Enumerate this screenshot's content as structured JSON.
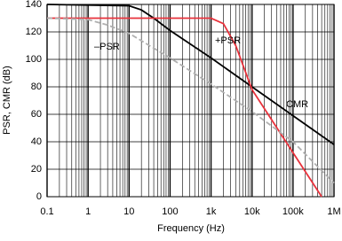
{
  "chart_data": {
    "type": "line",
    "x_label": "Frequency (Hz)",
    "y_label": "PSR, CMR (dB)",
    "log_x": true,
    "grid": true,
    "minor_grid": true,
    "xlim": [
      0.1,
      1000000
    ],
    "xticks": [
      0.1,
      1,
      10,
      100,
      {
        "value": 1000,
        "label": "1k"
      },
      {
        "value": 10000,
        "label": "10k"
      },
      {
        "value": 100000,
        "label": "100k"
      },
      {
        "value": 1000000,
        "label": "1M"
      }
    ],
    "ylim": [
      0,
      140
    ],
    "yticks": [
      0,
      20,
      40,
      60,
      80,
      100,
      120,
      140
    ],
    "series": [
      {
        "name": "CMR",
        "color": "#000000",
        "dash": false,
        "x": [
          0.1,
          10,
          20,
          40,
          100,
          1000,
          10000,
          100000,
          1000000
        ],
        "values": [
          140,
          139,
          136,
          130,
          121,
          101,
          80,
          59,
          38
        ]
      },
      {
        "name": "+PSR",
        "color": "#e8323c",
        "dash": false,
        "x": [
          0.1,
          1000,
          2000,
          4000,
          10000,
          100000,
          500000
        ],
        "values": [
          130,
          130,
          126,
          110,
          78,
          32,
          0
        ]
      },
      {
        "name": "–PSR",
        "color": "#b0b0b0",
        "dash": true,
        "x": [
          0.1,
          1,
          3,
          10,
          100,
          1000,
          10000,
          100000,
          1000000
        ],
        "values": [
          130,
          129,
          125,
          119,
          101,
          82,
          62,
          40,
          10
        ]
      }
    ]
  }
}
